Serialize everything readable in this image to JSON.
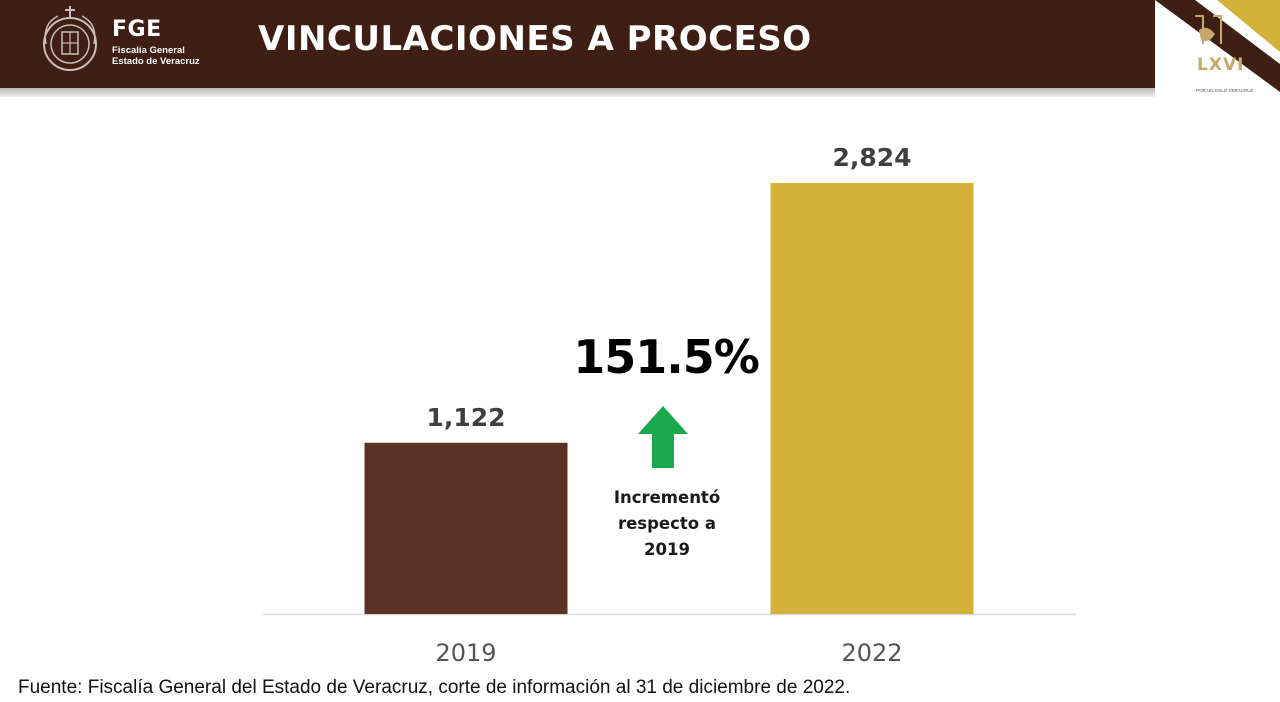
{
  "header": {
    "org_abbr": "FGE",
    "org_line1": "Fiscalía General",
    "org_line2": "Estado de Veracruz",
    "title": "VINCULACIONES A PROCESO",
    "legislature": "LXVI",
    "legislature_motto": "POR UN SOLO VERACRUZ",
    "bg_color": "#3f1e13",
    "accent_color": "#d4b23a"
  },
  "chart_data": {
    "type": "bar",
    "title": "VINCULACIONES A PROCESO",
    "categories": [
      "2019",
      "2022"
    ],
    "values": [
      1122,
      2824
    ],
    "value_labels": [
      "1,122",
      "2,824"
    ],
    "colors": [
      "#5a3223",
      "#d4b23a"
    ],
    "ylim": [
      0,
      2824
    ],
    "xlabel": "",
    "ylabel": "",
    "grid": false,
    "annotation": {
      "value": "151.5%",
      "text_lines": [
        "Incrementó",
        "respecto a",
        "2019"
      ],
      "arrow_color": "#19a84b",
      "arrow": "up-arrow-icon"
    }
  },
  "footer": {
    "source": "Fuente: Fiscalía General del Estado de Veracruz, corte de información al 31 de diciembre de 2022."
  }
}
